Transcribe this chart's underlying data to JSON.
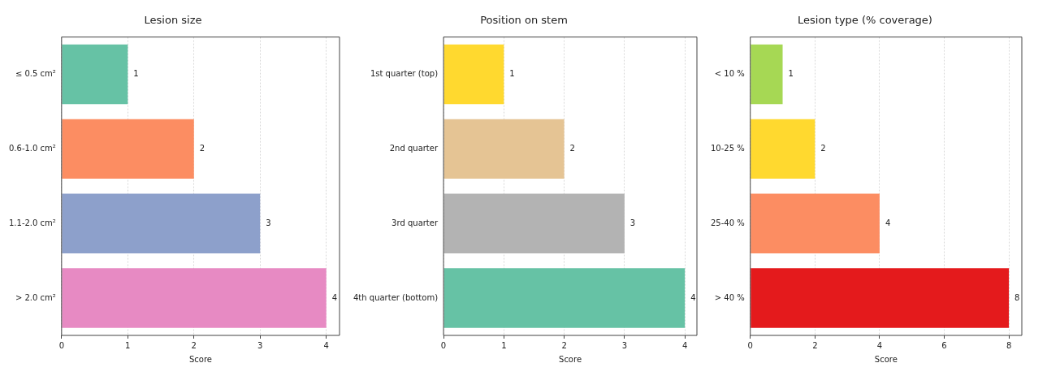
{
  "chart_data": [
    {
      "type": "bar",
      "orientation": "horizontal",
      "title": "Lesion size",
      "xlabel": "Score",
      "categories": [
        "≤ 0.5 cm²",
        "0.6-1.0 cm²",
        "1.1-2.0 cm²",
        "> 2.0 cm²"
      ],
      "values": [
        1,
        2,
        3,
        4
      ],
      "colors": [
        "#66c2a5",
        "#fc8d62",
        "#8da0cb",
        "#e78ac3"
      ],
      "xlim": [
        0,
        4.2
      ],
      "xticks": [
        0,
        1,
        2,
        3,
        4
      ],
      "grid": "x",
      "data_labels": true
    },
    {
      "type": "bar",
      "orientation": "horizontal",
      "title": "Position on stem",
      "xlabel": "Score",
      "categories": [
        "1st quarter (top)",
        "2nd quarter",
        "3rd quarter",
        "4th quarter (bottom)"
      ],
      "values": [
        1,
        2,
        3,
        4
      ],
      "colors": [
        "#ffd92f",
        "#e5c494",
        "#b3b3b3",
        "#66c2a5"
      ],
      "xlim": [
        0,
        4.2
      ],
      "xticks": [
        0,
        1,
        2,
        3,
        4
      ],
      "grid": "x",
      "data_labels": true
    },
    {
      "type": "bar",
      "orientation": "horizontal",
      "title": "Lesion type (% coverage)",
      "xlabel": "Score",
      "categories": [
        "< 10 %",
        "10-25 %",
        "25-40 %",
        "> 40 %"
      ],
      "values": [
        1,
        2,
        4,
        8
      ],
      "colors": [
        "#a6d854",
        "#ffd92f",
        "#fc8d62",
        "#e41a1c"
      ],
      "xlim": [
        0,
        8.4
      ],
      "xticks": [
        0,
        2,
        4,
        6,
        8
      ],
      "grid": "x",
      "data_labels": true
    }
  ]
}
